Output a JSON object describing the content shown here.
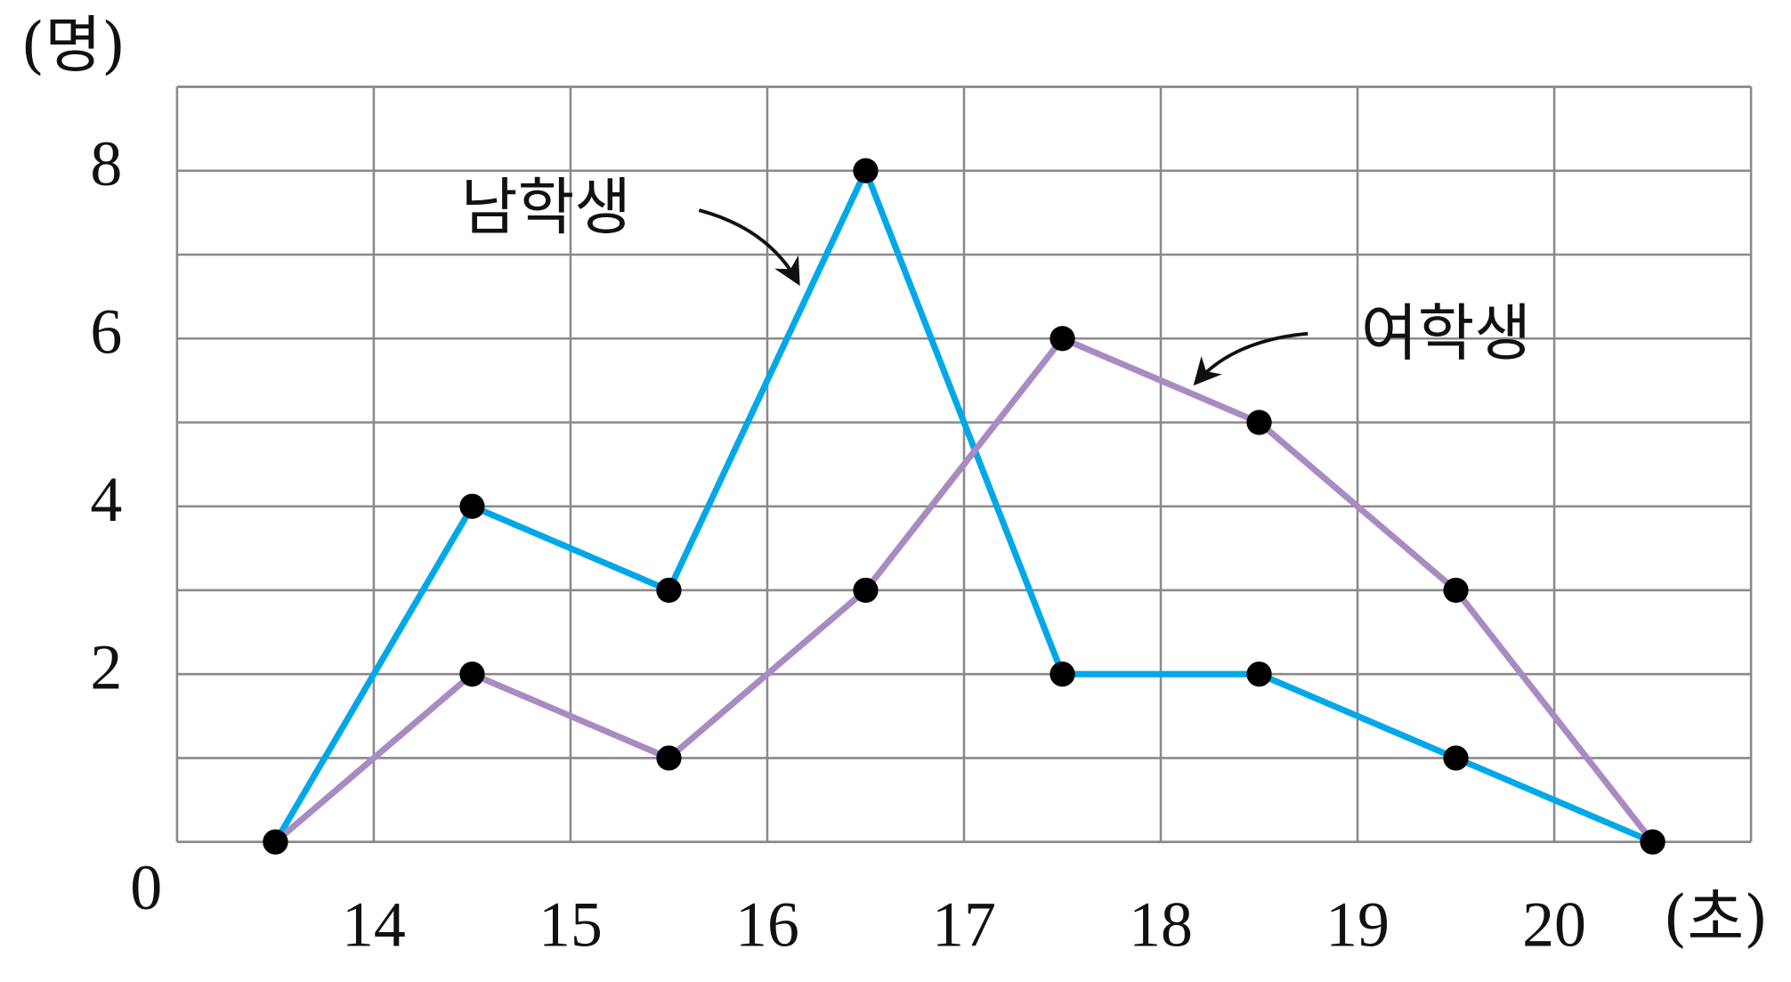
{
  "chart_data": {
    "type": "line",
    "y_label": "(명)",
    "x_label": "(초)",
    "x": [
      13.5,
      14.5,
      15.5,
      16.5,
      17.5,
      18.5,
      19.5,
      20.5
    ],
    "series": [
      {
        "name": "남학생",
        "color": "#00a8e8",
        "values": [
          0,
          4,
          3,
          8,
          2,
          2,
          1,
          0
        ]
      },
      {
        "name": "여학생",
        "color": "#a98bc3",
        "values": [
          0,
          2,
          1,
          3,
          6,
          5,
          3,
          0
        ]
      }
    ],
    "xlim": [
      13,
      21
    ],
    "xticks": [
      14,
      15,
      16,
      17,
      18,
      19,
      20
    ],
    "ylim": [
      0,
      9
    ],
    "yticks": [
      0,
      2,
      4,
      6,
      8
    ],
    "yminor": [
      1,
      3,
      5,
      7,
      9
    ],
    "grid": true,
    "marker_color": "#000000"
  }
}
